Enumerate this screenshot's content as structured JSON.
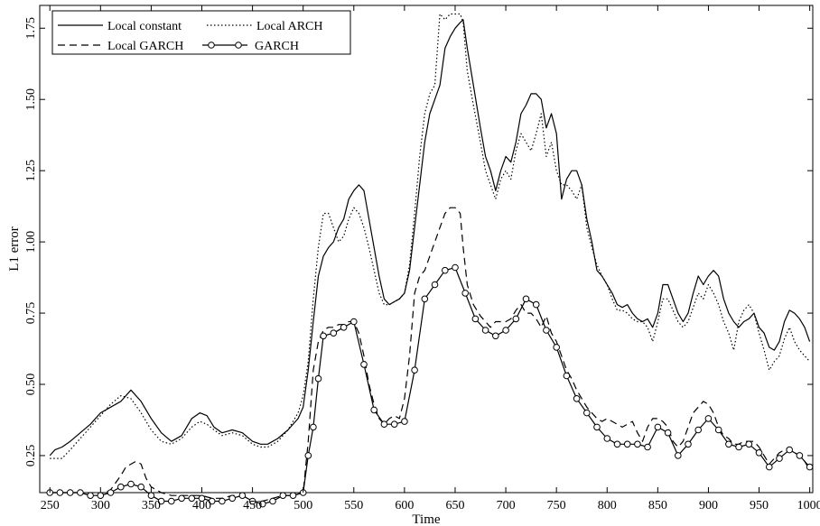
{
  "chart_data": {
    "type": "line",
    "title": "",
    "xlabel": "Time",
    "ylabel": "L1 error",
    "xlim": [
      240,
      1003
    ],
    "ylim": [
      0.12,
      1.83
    ],
    "xticks": [
      250,
      300,
      350,
      400,
      450,
      500,
      550,
      600,
      650,
      700,
      750,
      800,
      850,
      900,
      950,
      1000
    ],
    "yticks": [
      0.25,
      0.5,
      0.75,
      1.0,
      1.25,
      1.5,
      1.75
    ],
    "ytick_labels": [
      "0.25",
      "0.50",
      "0.75",
      "1.00",
      "1.25",
      "1.50",
      "1.75"
    ],
    "grid": false,
    "legend_position": "top-left",
    "series": [
      {
        "name": "Local constant",
        "style": "solid",
        "x": [
          250,
          255,
          262,
          270,
          280,
          290,
          300,
          310,
          320,
          330,
          340,
          350,
          360,
          370,
          380,
          390,
          398,
          405,
          412,
          420,
          430,
          440,
          450,
          458,
          465,
          475,
          485,
          495,
          500,
          505,
          510,
          515,
          520,
          525,
          530,
          535,
          540,
          545,
          550,
          555,
          560,
          565,
          570,
          575,
          580,
          585,
          590,
          595,
          600,
          605,
          610,
          615,
          620,
          625,
          630,
          635,
          640,
          645,
          650,
          655,
          658,
          662,
          668,
          675,
          680,
          685,
          690,
          695,
          700,
          705,
          710,
          715,
          720,
          725,
          730,
          735,
          740,
          745,
          750,
          755,
          760,
          765,
          770,
          775,
          780,
          785,
          790,
          795,
          800,
          805,
          810,
          815,
          820,
          825,
          830,
          835,
          840,
          845,
          850,
          855,
          860,
          865,
          870,
          875,
          880,
          885,
          890,
          895,
          900,
          905,
          910,
          915,
          920,
          925,
          930,
          935,
          940,
          945,
          950,
          955,
          960,
          965,
          970,
          975,
          980,
          985,
          990,
          995,
          1000
        ],
        "y": [
          0.25,
          0.27,
          0.28,
          0.3,
          0.33,
          0.36,
          0.4,
          0.42,
          0.44,
          0.48,
          0.44,
          0.38,
          0.33,
          0.3,
          0.32,
          0.38,
          0.4,
          0.39,
          0.35,
          0.33,
          0.34,
          0.33,
          0.3,
          0.29,
          0.29,
          0.31,
          0.34,
          0.38,
          0.42,
          0.55,
          0.72,
          0.88,
          0.95,
          0.98,
          1.0,
          1.05,
          1.08,
          1.15,
          1.18,
          1.2,
          1.18,
          1.08,
          0.98,
          0.88,
          0.8,
          0.78,
          0.79,
          0.8,
          0.82,
          0.9,
          1.05,
          1.2,
          1.35,
          1.45,
          1.5,
          1.55,
          1.68,
          1.72,
          1.75,
          1.77,
          1.78,
          1.68,
          1.55,
          1.4,
          1.3,
          1.25,
          1.18,
          1.25,
          1.3,
          1.28,
          1.35,
          1.45,
          1.48,
          1.52,
          1.52,
          1.5,
          1.4,
          1.45,
          1.38,
          1.15,
          1.22,
          1.25,
          1.25,
          1.2,
          1.08,
          1.0,
          0.9,
          0.88,
          0.85,
          0.82,
          0.78,
          0.77,
          0.78,
          0.75,
          0.73,
          0.72,
          0.73,
          0.7,
          0.75,
          0.85,
          0.85,
          0.8,
          0.75,
          0.72,
          0.75,
          0.82,
          0.88,
          0.85,
          0.88,
          0.9,
          0.88,
          0.8,
          0.75,
          0.72,
          0.7,
          0.72,
          0.73,
          0.75,
          0.7,
          0.68,
          0.63,
          0.62,
          0.65,
          0.72,
          0.76,
          0.75,
          0.73,
          0.7,
          0.65
        ]
      },
      {
        "name": "Local ARCH",
        "style": "dotted",
        "x": [
          250,
          255,
          262,
          270,
          280,
          290,
          300,
          310,
          320,
          330,
          340,
          350,
          360,
          370,
          380,
          390,
          398,
          405,
          412,
          420,
          430,
          440,
          450,
          458,
          465,
          475,
          485,
          495,
          500,
          505,
          510,
          515,
          520,
          525,
          530,
          535,
          540,
          545,
          550,
          555,
          560,
          565,
          570,
          575,
          580,
          585,
          590,
          595,
          600,
          605,
          610,
          615,
          620,
          625,
          630,
          635,
          640,
          645,
          650,
          655,
          658,
          662,
          668,
          675,
          680,
          685,
          690,
          695,
          700,
          705,
          710,
          715,
          720,
          725,
          730,
          735,
          740,
          745,
          750,
          755,
          760,
          765,
          770,
          775,
          780,
          785,
          790,
          795,
          800,
          805,
          810,
          815,
          820,
          825,
          830,
          835,
          840,
          845,
          850,
          855,
          860,
          865,
          870,
          875,
          880,
          885,
          890,
          895,
          900,
          905,
          910,
          915,
          920,
          925,
          930,
          935,
          940,
          945,
          950,
          955,
          960,
          965,
          970,
          975,
          980,
          985,
          990,
          995,
          1000
        ],
        "y": [
          0.24,
          0.24,
          0.24,
          0.27,
          0.31,
          0.35,
          0.39,
          0.43,
          0.46,
          0.45,
          0.4,
          0.34,
          0.3,
          0.29,
          0.31,
          0.35,
          0.37,
          0.36,
          0.34,
          0.32,
          0.33,
          0.32,
          0.29,
          0.28,
          0.28,
          0.3,
          0.34,
          0.4,
          0.46,
          0.58,
          0.8,
          0.98,
          1.1,
          1.1,
          1.05,
          1.0,
          1.02,
          1.08,
          1.12,
          1.1,
          1.05,
          0.98,
          0.9,
          0.82,
          0.78,
          0.78,
          0.79,
          0.8,
          0.82,
          0.92,
          1.1,
          1.3,
          1.45,
          1.52,
          1.55,
          1.8,
          1.78,
          1.8,
          1.8,
          1.8,
          1.77,
          1.6,
          1.48,
          1.35,
          1.25,
          1.2,
          1.15,
          1.22,
          1.25,
          1.22,
          1.32,
          1.38,
          1.35,
          1.32,
          1.38,
          1.45,
          1.3,
          1.35,
          1.25,
          1.2,
          1.2,
          1.18,
          1.15,
          1.2,
          1.05,
          0.98,
          0.92,
          0.88,
          0.85,
          0.8,
          0.76,
          0.76,
          0.75,
          0.73,
          0.72,
          0.72,
          0.7,
          0.65,
          0.72,
          0.8,
          0.8,
          0.76,
          0.72,
          0.7,
          0.72,
          0.77,
          0.82,
          0.8,
          0.85,
          0.82,
          0.78,
          0.72,
          0.68,
          0.62,
          0.72,
          0.76,
          0.78,
          0.75,
          0.68,
          0.62,
          0.55,
          0.58,
          0.6,
          0.66,
          0.7,
          0.65,
          0.62,
          0.6,
          0.58
        ]
      },
      {
        "name": "Local GARCH",
        "style": "dashed",
        "x": [
          250,
          260,
          270,
          280,
          290,
          300,
          310,
          320,
          325,
          330,
          335,
          340,
          345,
          350,
          360,
          370,
          380,
          390,
          400,
          410,
          420,
          430,
          440,
          450,
          460,
          470,
          480,
          490,
          500,
          505,
          510,
          515,
          520,
          525,
          530,
          535,
          540,
          545,
          550,
          555,
          560,
          565,
          570,
          575,
          580,
          585,
          590,
          595,
          600,
          605,
          610,
          615,
          620,
          625,
          630,
          635,
          640,
          645,
          650,
          655,
          658,
          662,
          668,
          675,
          680,
          685,
          690,
          695,
          700,
          705,
          710,
          715,
          720,
          725,
          730,
          735,
          740,
          745,
          750,
          755,
          760,
          765,
          770,
          775,
          780,
          785,
          790,
          795,
          800,
          805,
          810,
          815,
          820,
          825,
          830,
          835,
          840,
          845,
          850,
          855,
          860,
          865,
          870,
          875,
          880,
          885,
          890,
          895,
          900,
          905,
          910,
          915,
          920,
          925,
          930,
          935,
          940,
          945,
          950,
          955,
          960,
          965,
          970,
          975,
          980,
          985,
          990,
          995,
          1000
        ],
        "y": [
          0.12,
          0.12,
          0.12,
          0.12,
          0.11,
          0.11,
          0.13,
          0.18,
          0.21,
          0.22,
          0.23,
          0.22,
          0.17,
          0.14,
          0.12,
          0.11,
          0.11,
          0.11,
          0.11,
          0.1,
          0.1,
          0.11,
          0.11,
          0.09,
          0.09,
          0.1,
          0.11,
          0.11,
          0.12,
          0.3,
          0.55,
          0.65,
          0.69,
          0.7,
          0.7,
          0.71,
          0.71,
          0.72,
          0.72,
          0.68,
          0.6,
          0.5,
          0.43,
          0.38,
          0.36,
          0.38,
          0.39,
          0.38,
          0.45,
          0.6,
          0.82,
          0.88,
          0.9,
          0.95,
          1.0,
          1.05,
          1.1,
          1.12,
          1.12,
          1.1,
          0.98,
          0.85,
          0.78,
          0.74,
          0.72,
          0.7,
          0.72,
          0.72,
          0.72,
          0.73,
          0.76,
          0.78,
          0.75,
          0.75,
          0.73,
          0.7,
          0.74,
          0.68,
          0.65,
          0.6,
          0.55,
          0.52,
          0.48,
          0.45,
          0.42,
          0.4,
          0.38,
          0.37,
          0.38,
          0.37,
          0.36,
          0.35,
          0.36,
          0.37,
          0.33,
          0.3,
          0.35,
          0.38,
          0.38,
          0.37,
          0.35,
          0.3,
          0.28,
          0.3,
          0.35,
          0.4,
          0.42,
          0.44,
          0.43,
          0.4,
          0.35,
          0.32,
          0.31,
          0.29,
          0.29,
          0.3,
          0.3,
          0.3,
          0.28,
          0.25,
          0.22,
          0.24,
          0.26,
          0.27,
          0.28,
          0.26,
          0.25,
          0.23,
          0.2
        ]
      },
      {
        "name": "GARCH",
        "style": "solid-circle",
        "x": [
          250,
          260,
          270,
          280,
          290,
          300,
          310,
          320,
          330,
          340,
          350,
          360,
          370,
          380,
          390,
          400,
          410,
          420,
          430,
          440,
          450,
          460,
          470,
          480,
          490,
          500,
          505,
          510,
          515,
          520,
          530,
          540,
          550,
          560,
          570,
          580,
          590,
          600,
          610,
          620,
          630,
          640,
          650,
          660,
          670,
          680,
          690,
          700,
          710,
          720,
          730,
          740,
          750,
          760,
          770,
          780,
          790,
          800,
          810,
          820,
          830,
          840,
          850,
          860,
          870,
          880,
          890,
          900,
          910,
          920,
          930,
          940,
          950,
          960,
          970,
          980,
          990,
          1000
        ],
        "y": [
          0.12,
          0.12,
          0.12,
          0.12,
          0.11,
          0.11,
          0.12,
          0.14,
          0.15,
          0.14,
          0.11,
          0.09,
          0.09,
          0.1,
          0.1,
          0.1,
          0.09,
          0.09,
          0.1,
          0.11,
          0.09,
          0.08,
          0.09,
          0.11,
          0.11,
          0.12,
          0.25,
          0.35,
          0.52,
          0.67,
          0.68,
          0.7,
          0.72,
          0.57,
          0.41,
          0.36,
          0.36,
          0.37,
          0.55,
          0.8,
          0.85,
          0.9,
          0.91,
          0.82,
          0.73,
          0.69,
          0.67,
          0.69,
          0.73,
          0.8,
          0.78,
          0.69,
          0.63,
          0.53,
          0.45,
          0.4,
          0.35,
          0.31,
          0.29,
          0.29,
          0.29,
          0.28,
          0.35,
          0.33,
          0.25,
          0.29,
          0.34,
          0.38,
          0.34,
          0.29,
          0.28,
          0.29,
          0.26,
          0.21,
          0.24,
          0.27,
          0.25,
          0.21
        ]
      }
    ]
  }
}
